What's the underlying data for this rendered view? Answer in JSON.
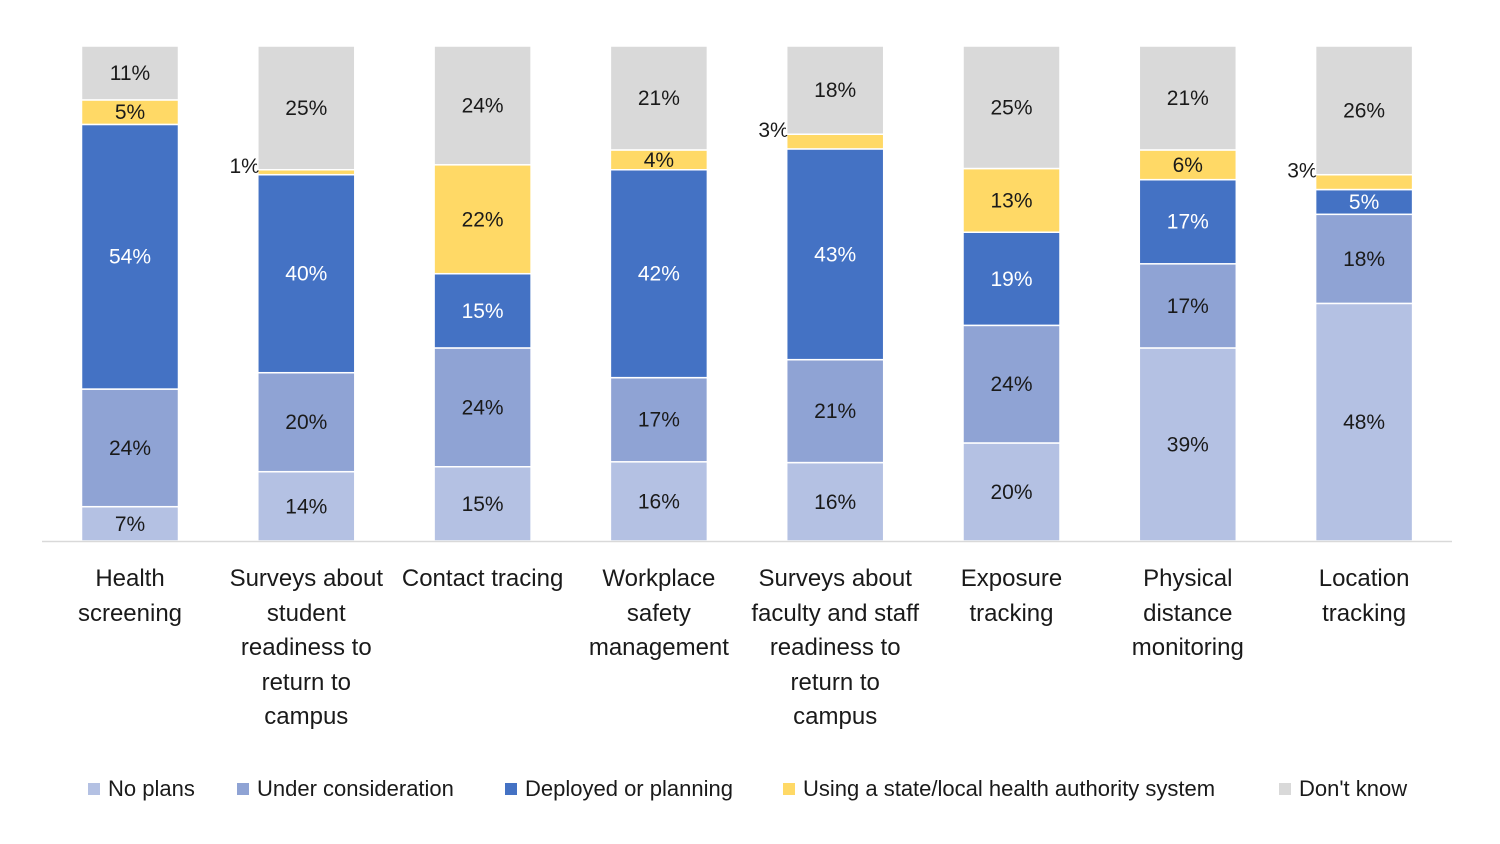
{
  "chart_data": {
    "type": "bar",
    "stacked": true,
    "percent_stacked": true,
    "title": "",
    "xlabel": "",
    "ylabel": "",
    "grid": false,
    "legend_position": "bottom",
    "categories": [
      "Health screening",
      "Surveys about student readiness to return to campus",
      "Contact tracing",
      "Workplace safety management",
      "Surveys about faculty and staff readiness to return to campus",
      "Exposure tracking",
      "Physical distance monitoring",
      "Location tracking"
    ],
    "series": [
      {
        "name": "No plans",
        "color": "#B4C1E3",
        "values": [
          7,
          14,
          15,
          16,
          16,
          20,
          39,
          48
        ]
      },
      {
        "name": "Under consideration",
        "color": "#8FA3D4",
        "values": [
          24,
          20,
          24,
          17,
          21,
          24,
          17,
          18
        ]
      },
      {
        "name": "Deployed or planning",
        "color": "#4472C4",
        "values": [
          54,
          40,
          15,
          42,
          43,
          19,
          17,
          5
        ]
      },
      {
        "name": "Using a state/local health authority system",
        "color": "#FFD966",
        "values": [
          5,
          1,
          22,
          4,
          3,
          13,
          6,
          3
        ]
      },
      {
        "name": "Don't know",
        "color": "#D9D9D9",
        "values": [
          11,
          25,
          24,
          21,
          18,
          25,
          21,
          26
        ]
      }
    ],
    "value_suffix": "%"
  }
}
